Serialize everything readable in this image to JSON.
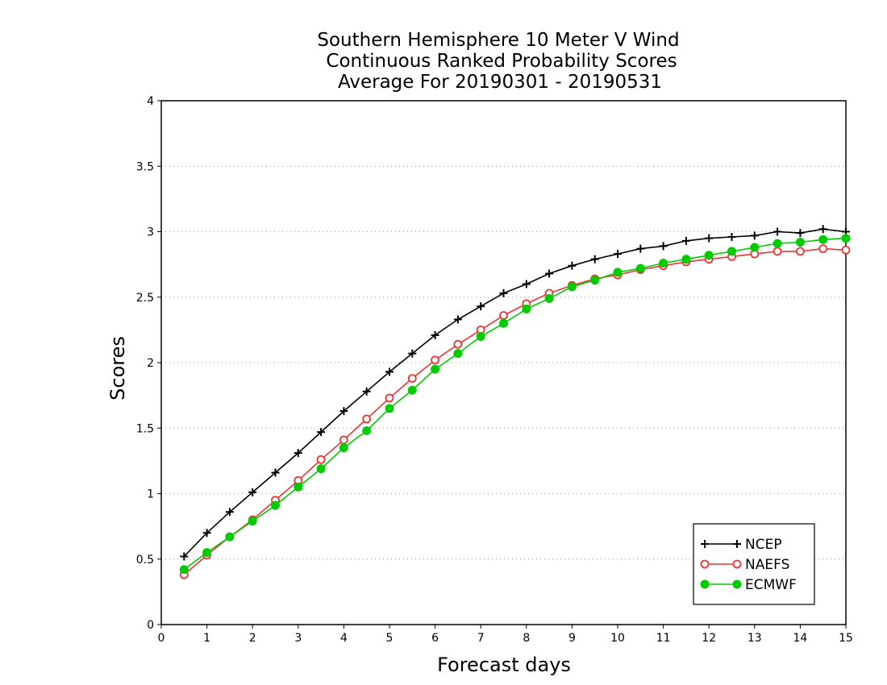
{
  "chart_data": {
    "type": "line",
    "title_lines": [
      "Southern Hemisphere 10 Meter V Wind",
      "Continuous Ranked Probability Scores",
      "Average For 20190301 - 20190531"
    ],
    "xlabel": "Forecast days",
    "ylabel": "Scores",
    "xlim": [
      0,
      15
    ],
    "ylim": [
      0,
      4
    ],
    "xticks": [
      0,
      1,
      2,
      3,
      4,
      5,
      6,
      7,
      8,
      9,
      10,
      11,
      12,
      13,
      14,
      15
    ],
    "yticks": [
      0,
      0.5,
      1,
      1.5,
      2,
      2.5,
      3,
      3.5,
      4
    ],
    "ytick_labels": [
      "0",
      "0.5",
      "1",
      "1.5",
      "2",
      "2.5",
      "3",
      "3.5",
      "4"
    ],
    "grid": "horizontal dotted",
    "legend_position": "bottom-right",
    "x": [
      0.5,
      1,
      1.5,
      2,
      2.5,
      3,
      3.5,
      4,
      4.5,
      5,
      5.5,
      6,
      6.5,
      7,
      7.5,
      8,
      8.5,
      9,
      9.5,
      10,
      10.5,
      11,
      11.5,
      12,
      12.5,
      13,
      13.5,
      14,
      14.5,
      15
    ],
    "series": [
      {
        "name": "NCEP",
        "color": "#000000",
        "marker": "plus",
        "values": [
          0.52,
          0.7,
          0.86,
          1.01,
          1.16,
          1.31,
          1.47,
          1.63,
          1.78,
          1.93,
          2.07,
          2.21,
          2.33,
          2.43,
          2.53,
          2.6,
          2.68,
          2.74,
          2.79,
          2.83,
          2.87,
          2.89,
          2.93,
          2.95,
          2.96,
          2.97,
          3.0,
          2.99,
          3.02,
          3.0
        ]
      },
      {
        "name": "NAEFS",
        "color": "#ee3333",
        "marker": "open-circle",
        "values": [
          0.38,
          0.53,
          0.67,
          0.8,
          0.95,
          1.1,
          1.26,
          1.41,
          1.57,
          1.73,
          1.88,
          2.02,
          2.14,
          2.25,
          2.36,
          2.45,
          2.53,
          2.59,
          2.64,
          2.67,
          2.71,
          2.74,
          2.77,
          2.79,
          2.81,
          2.83,
          2.85,
          2.85,
          2.87,
          2.86
        ]
      },
      {
        "name": "ECMWF",
        "color": "#00cc00",
        "marker": "filled-circle",
        "values": [
          0.42,
          0.55,
          0.67,
          0.79,
          0.91,
          1.05,
          1.19,
          1.35,
          1.48,
          1.65,
          1.79,
          1.95,
          2.07,
          2.2,
          2.3,
          2.41,
          2.49,
          2.58,
          2.63,
          2.69,
          2.72,
          2.76,
          2.79,
          2.82,
          2.85,
          2.88,
          2.91,
          2.92,
          2.94,
          2.95
        ]
      }
    ]
  }
}
